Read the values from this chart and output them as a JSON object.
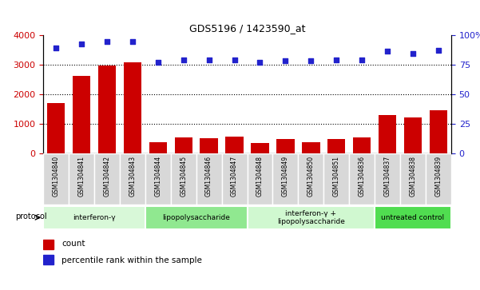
{
  "title": "GDS5196 / 1423590_at",
  "samples": [
    "GSM1304840",
    "GSM1304841",
    "GSM1304842",
    "GSM1304843",
    "GSM1304844",
    "GSM1304845",
    "GSM1304846",
    "GSM1304847",
    "GSM1304848",
    "GSM1304849",
    "GSM1304850",
    "GSM1304851",
    "GSM1304836",
    "GSM1304837",
    "GSM1304838",
    "GSM1304839"
  ],
  "counts": [
    1700,
    2620,
    2980,
    3080,
    380,
    540,
    530,
    570,
    360,
    490,
    390,
    490,
    540,
    1290,
    1210,
    1470
  ],
  "percentiles": [
    89,
    92,
    94,
    94,
    77,
    79,
    79,
    79,
    77,
    78,
    78,
    79,
    79,
    86,
    84,
    87
  ],
  "groups": [
    {
      "label": "interferon-γ",
      "start": 0,
      "end": 4,
      "color": "#d8f8d8"
    },
    {
      "label": "lipopolysaccharide",
      "start": 4,
      "end": 8,
      "color": "#90e890"
    },
    {
      "label": "interferon-γ +\nlipopolysaccharide",
      "start": 8,
      "end": 13,
      "color": "#d0f8d0"
    },
    {
      "label": "untreated control",
      "start": 13,
      "end": 16,
      "color": "#50dd50"
    }
  ],
  "ylim_left": [
    0,
    4000
  ],
  "ylim_right": [
    0,
    100
  ],
  "yticks_left": [
    0,
    1000,
    2000,
    3000,
    4000
  ],
  "yticks_right": [
    0,
    25,
    50,
    75,
    100
  ],
  "bar_color": "#cc0000",
  "dot_color": "#2222cc",
  "background_color": "#ffffff",
  "left_tick_color": "#cc0000",
  "right_tick_color": "#2222cc",
  "xlabel_bg": "#d8d8d8"
}
